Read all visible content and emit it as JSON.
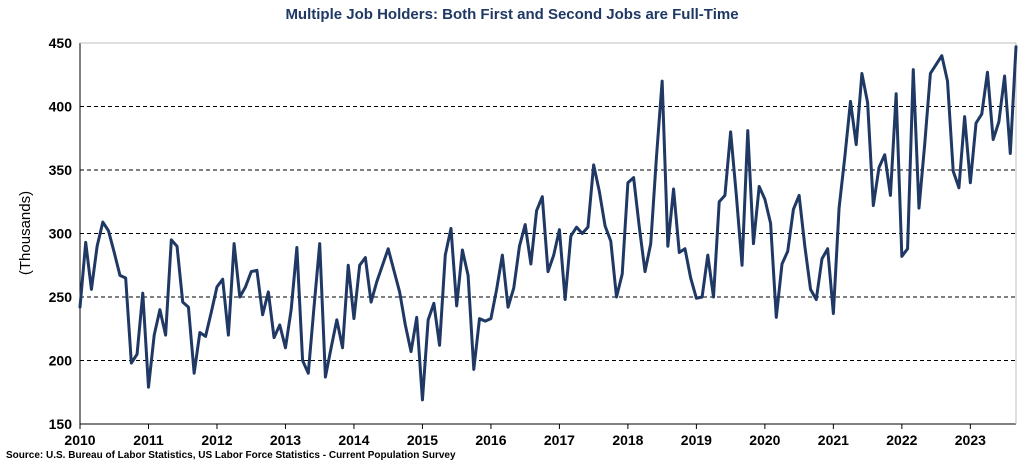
{
  "title": "Multiple Job Holders: Both First and Second Jobs are Full-Time",
  "source": "Source: U.S. Bureau of Labor Statistics, US Labor Force Statistics - Current Population Survey",
  "chart_data": {
    "type": "line",
    "title": "Multiple Job Holders: Both First and Second Jobs are Full-Time",
    "xlabel": "",
    "ylabel": "(Thousands)",
    "ylim": [
      150,
      450
    ],
    "yticks": [
      "150",
      "200",
      "250",
      "300",
      "350",
      "400",
      "450"
    ],
    "xticks": [
      "2010",
      "2011",
      "2012",
      "2013",
      "2014",
      "2015",
      "2016",
      "2017",
      "2018",
      "2019",
      "2020",
      "2021",
      "2022",
      "2023"
    ],
    "x_start": "2010-01",
    "frequency": "monthly",
    "grid": "horizontal dashed",
    "line_color": "#1f3864",
    "series": [
      {
        "name": "",
        "values": [
          242,
          293,
          256,
          290,
          309,
          302,
          285,
          267,
          265,
          198,
          205,
          253,
          179,
          220,
          240,
          220,
          295,
          290,
          246,
          242,
          190,
          222,
          219,
          238,
          258,
          264,
          220,
          292,
          250,
          258,
          270,
          271,
          236,
          254,
          218,
          228,
          210,
          240,
          289,
          200,
          190,
          242,
          292,
          187,
          210,
          232,
          210,
          275,
          233,
          275,
          281,
          246,
          262,
          275,
          288,
          271,
          254,
          228,
          207,
          234,
          169,
          232,
          245,
          212,
          283,
          304,
          243,
          287,
          267,
          193,
          233,
          231,
          233,
          256,
          283,
          242,
          257,
          290,
          307,
          276,
          318,
          329,
          270,
          283,
          303,
          248,
          298,
          305,
          300,
          305,
          354,
          333,
          306,
          294,
          250,
          268,
          340,
          344,
          305,
          270,
          292,
          360,
          420,
          290,
          335,
          285,
          288,
          265,
          249,
          250,
          283,
          250,
          325,
          330,
          380,
          330,
          275,
          381,
          292,
          337,
          327,
          308,
          234,
          276,
          286,
          319,
          330,
          290,
          256,
          248,
          280,
          288,
          237,
          320,
          360,
          404,
          370,
          426,
          403,
          322,
          352,
          362,
          330,
          410,
          282,
          288,
          429,
          320,
          370,
          426,
          433,
          440,
          420,
          349,
          336,
          392,
          340,
          387,
          394,
          427,
          374,
          388,
          424,
          363,
          447
        ]
      }
    ]
  }
}
